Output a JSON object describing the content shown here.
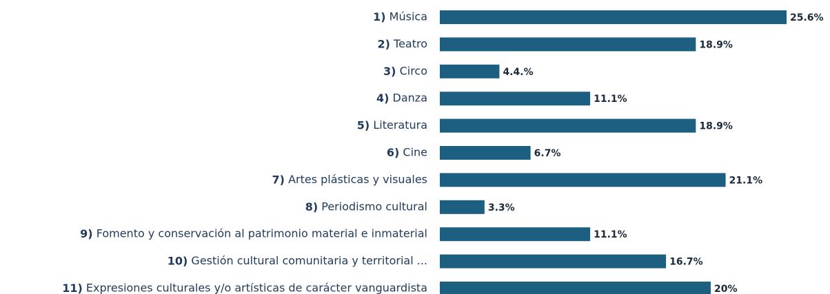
{
  "chart_data": {
    "type": "hbar",
    "color": "#1d5f80",
    "categories": [
      "1) Música",
      "2) Teatro",
      "3) Circo",
      "4) Danza",
      "5) Literatura",
      "6) Cine",
      "7) Artes plásticas y visuales",
      "8) Periodismo cultural",
      "9) Fomento y conservación al patrimonio material e inmaterial",
      "10) Gestión cultural comunitaria y territorial ...",
      "11) Expresiones culturales y/o artísticas de carácter vanguardista"
    ],
    "values": [
      25.6,
      18.9,
      4.4,
      11.1,
      18.9,
      6.7,
      21.1,
      3.3,
      11.1,
      16.7,
      20
    ],
    "value_labels": [
      "25.6%",
      "18.9%",
      "4.4.%",
      "11.1%",
      "18.9%",
      "6.7%",
      "21.1%",
      "3.3%",
      "11.1%",
      "16.7%",
      "20%"
    ]
  }
}
